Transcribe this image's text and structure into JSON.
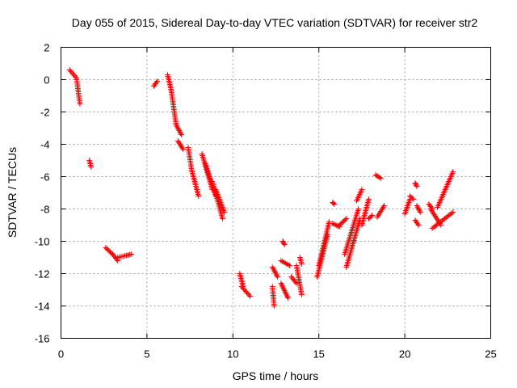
{
  "chart_data": {
    "type": "scatter",
    "title": "Day 055 of 2015, Sidereal Day-to-day VTEC variation (SDTVAR) for receiver str2",
    "xlabel": "GPS time / hours",
    "ylabel": "SDTVAR / TECUs",
    "xlim": [
      0,
      25
    ],
    "ylim": [
      -16,
      2
    ],
    "xticks": [
      0,
      5,
      10,
      15,
      20,
      25
    ],
    "yticks": [
      -16,
      -14,
      -12,
      -10,
      -8,
      -6,
      -4,
      -2,
      0,
      2
    ],
    "grid": true,
    "marker": "plus",
    "color": "#ff0000",
    "series": [
      {
        "name": "SDTVAR",
        "segments": [
          {
            "x0": 0.5,
            "x1": 0.9,
            "y0": 0.6,
            "y1": 0.1
          },
          {
            "x0": 0.9,
            "x1": 1.1,
            "y0": 0.1,
            "y1": -1.5
          },
          {
            "x0": 1.65,
            "x1": 1.75,
            "y0": -5.0,
            "y1": -5.4
          },
          {
            "x0": 2.6,
            "x1": 3.0,
            "y0": -10.4,
            "y1": -10.8
          },
          {
            "x0": 3.0,
            "x1": 3.3,
            "y0": -10.8,
            "y1": -11.2
          },
          {
            "x0": 3.3,
            "x1": 4.1,
            "y0": -11.0,
            "y1": -10.8
          },
          {
            "x0": 5.4,
            "x1": 5.6,
            "y0": -0.4,
            "y1": -0.1
          },
          {
            "x0": 6.2,
            "x1": 6.4,
            "y0": 0.3,
            "y1": -0.6
          },
          {
            "x0": 6.4,
            "x1": 6.7,
            "y0": -0.6,
            "y1": -2.8
          },
          {
            "x0": 6.7,
            "x1": 7.0,
            "y0": -2.8,
            "y1": -3.4
          },
          {
            "x0": 6.8,
            "x1": 7.1,
            "y0": -3.8,
            "y1": -4.3
          },
          {
            "x0": 7.4,
            "x1": 7.6,
            "y0": -4.2,
            "y1": -5.6
          },
          {
            "x0": 7.6,
            "x1": 8.0,
            "y0": -5.6,
            "y1": -7.2
          },
          {
            "x0": 8.2,
            "x1": 8.8,
            "y0": -4.6,
            "y1": -6.8
          },
          {
            "x0": 8.4,
            "x1": 9.0,
            "y0": -5.2,
            "y1": -7.2
          },
          {
            "x0": 8.8,
            "x1": 9.4,
            "y0": -6.3,
            "y1": -8.6
          },
          {
            "x0": 9.0,
            "x1": 9.5,
            "y0": -6.8,
            "y1": -8.2
          },
          {
            "x0": 10.4,
            "x1": 10.6,
            "y0": -12.0,
            "y1": -12.8
          },
          {
            "x0": 10.5,
            "x1": 11.0,
            "y0": -12.8,
            "y1": -13.4
          },
          {
            "x0": 12.3,
            "x1": 12.4,
            "y0": -12.8,
            "y1": -14.0
          },
          {
            "x0": 12.3,
            "x1": 12.6,
            "y0": -11.6,
            "y1": -12.2
          },
          {
            "x0": 12.8,
            "x1": 13.2,
            "y0": -12.6,
            "y1": -13.5
          },
          {
            "x0": 12.8,
            "x1": 13.3,
            "y0": -11.2,
            "y1": -11.5
          },
          {
            "x0": 12.9,
            "x1": 13.0,
            "y0": -10.0,
            "y1": -10.2
          },
          {
            "x0": 13.4,
            "x1": 13.7,
            "y0": -12.2,
            "y1": -12.6
          },
          {
            "x0": 13.7,
            "x1": 14.0,
            "y0": -11.5,
            "y1": -13.3
          },
          {
            "x0": 13.9,
            "x1": 14.0,
            "y0": -11.0,
            "y1": -11.4
          },
          {
            "x0": 14.9,
            "x1": 15.5,
            "y0": -12.2,
            "y1": -9.6
          },
          {
            "x0": 15.0,
            "x1": 15.6,
            "y0": -11.5,
            "y1": -8.8
          },
          {
            "x0": 15.8,
            "x1": 15.9,
            "y0": -7.6,
            "y1": -7.7
          },
          {
            "x0": 15.8,
            "x1": 16.2,
            "y0": -8.9,
            "y1": -9.1
          },
          {
            "x0": 16.2,
            "x1": 16.6,
            "y0": -9.0,
            "y1": -8.6
          },
          {
            "x0": 16.5,
            "x1": 17.3,
            "y0": -10.8,
            "y1": -8.0
          },
          {
            "x0": 16.6,
            "x1": 17.4,
            "y0": -11.6,
            "y1": -8.6
          },
          {
            "x0": 17.2,
            "x1": 17.5,
            "y0": -7.5,
            "y1": -6.8
          },
          {
            "x0": 17.5,
            "x1": 17.9,
            "y0": -9.0,
            "y1": -7.4
          },
          {
            "x0": 17.9,
            "x1": 18.1,
            "y0": -8.6,
            "y1": -8.4
          },
          {
            "x0": 18.3,
            "x1": 18.6,
            "y0": -5.9,
            "y1": -6.1
          },
          {
            "x0": 18.4,
            "x1": 18.8,
            "y0": -8.5,
            "y1": -7.8
          },
          {
            "x0": 20.0,
            "x1": 20.3,
            "y0": -8.3,
            "y1": -7.4
          },
          {
            "x0": 20.3,
            "x1": 20.5,
            "y0": -7.2,
            "y1": -7.4
          },
          {
            "x0": 20.6,
            "x1": 20.7,
            "y0": -6.4,
            "y1": -6.6
          },
          {
            "x0": 20.6,
            "x1": 20.8,
            "y0": -8.7,
            "y1": -9.0
          },
          {
            "x0": 20.7,
            "x1": 20.9,
            "y0": -7.8,
            "y1": -8.2
          },
          {
            "x0": 21.4,
            "x1": 21.6,
            "y0": -7.7,
            "y1": -8.0
          },
          {
            "x0": 21.5,
            "x1": 22.1,
            "y0": -8.0,
            "y1": -9.0
          },
          {
            "x0": 21.6,
            "x1": 22.8,
            "y0": -9.2,
            "y1": -8.2
          },
          {
            "x0": 21.9,
            "x1": 22.8,
            "y0": -7.9,
            "y1": -5.7
          }
        ]
      }
    ]
  }
}
